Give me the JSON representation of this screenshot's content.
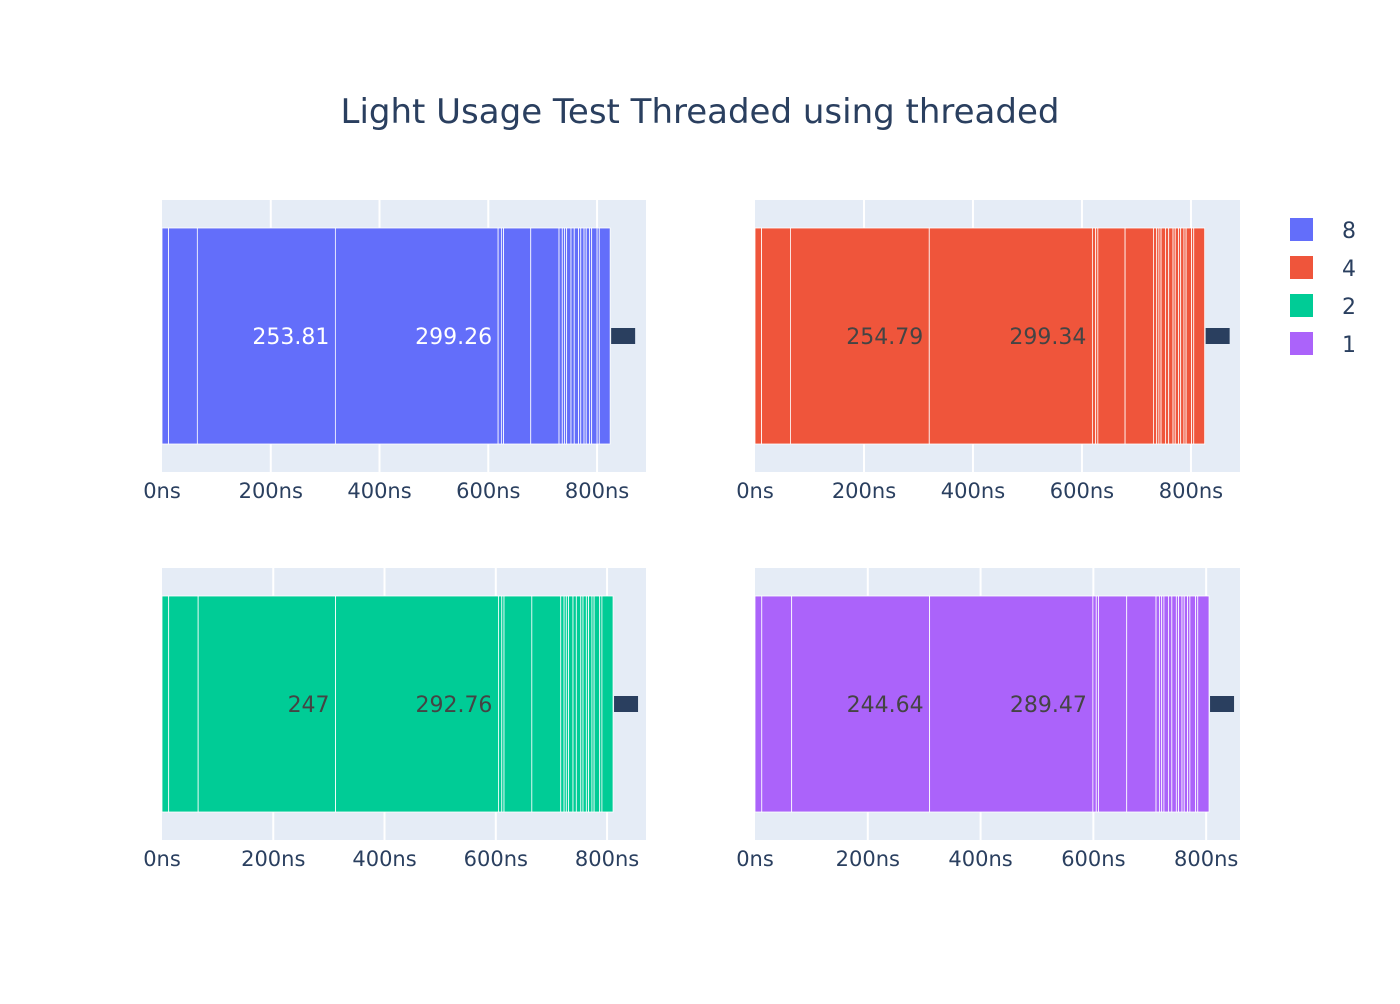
{
  "title": "Light Usage Test Threaded using threaded",
  "legend": {
    "placement": "top-right",
    "items": [
      {
        "label": "8",
        "color": "#636efa"
      },
      {
        "label": "4",
        "color": "#ef553b"
      },
      {
        "label": "2",
        "color": "#00cc96"
      },
      {
        "label": "1",
        "color": "#ab63fa"
      }
    ]
  },
  "chart_data": [
    {
      "type": "bar",
      "orientation": "horizontal-stacked",
      "series_name": "8",
      "color": "#636efa",
      "xlim": [
        0,
        890
      ],
      "x_ticks": [
        "0ns",
        "200ns",
        "400ns",
        "600ns",
        "800ns"
      ],
      "x_tick_values": [
        0,
        200,
        400,
        600,
        800
      ],
      "segments": [
        12,
        53,
        253.81,
        299.26,
        6,
        4,
        50,
        52,
        6,
        4,
        4,
        8,
        6,
        8,
        4,
        6,
        4,
        6,
        4,
        10,
        4,
        20
      ],
      "data_labels": [
        "253.81",
        "299.26"
      ],
      "grid": true
    },
    {
      "type": "bar",
      "orientation": "horizontal-stacked",
      "series_name": "4",
      "color": "#ef553b",
      "xlim": [
        0,
        890
      ],
      "x_ticks": [
        "0ns",
        "200ns",
        "400ns",
        "600ns",
        "800ns"
      ],
      "x_tick_values": [
        0,
        200,
        400,
        600,
        800
      ],
      "segments": [
        12,
        53,
        254.79,
        299.34,
        6,
        4,
        50,
        52,
        6,
        4,
        4,
        8,
        6,
        8,
        4,
        6,
        4,
        6,
        4,
        10,
        4,
        20
      ],
      "data_labels": [
        "254.79",
        "299.34"
      ],
      "grid": true
    },
    {
      "type": "bar",
      "orientation": "horizontal-stacked",
      "series_name": "2",
      "color": "#00cc96",
      "xlim": [
        0,
        870
      ],
      "x_ticks": [
        "0ns",
        "200ns",
        "400ns",
        "600ns",
        "800ns"
      ],
      "x_tick_values": [
        0,
        200,
        400,
        600,
        800
      ],
      "segments": [
        12,
        53,
        247,
        292.76,
        6,
        4,
        50,
        52,
        6,
        4,
        4,
        8,
        6,
        8,
        4,
        6,
        4,
        6,
        4,
        10,
        4,
        20
      ],
      "data_labels": [
        "247",
        "292.76"
      ],
      "grid": true
    },
    {
      "type": "bar",
      "orientation": "horizontal-stacked",
      "series_name": "1",
      "color": "#ab63fa",
      "xlim": [
        0,
        860
      ],
      "x_ticks": [
        "0ns",
        "200ns",
        "400ns",
        "600ns",
        "800ns"
      ],
      "x_tick_values": [
        0,
        200,
        400,
        600,
        800
      ],
      "segments": [
        12,
        53,
        244.64,
        289.47,
        6,
        4,
        50,
        52,
        6,
        4,
        4,
        8,
        6,
        8,
        4,
        6,
        4,
        6,
        4,
        10,
        4,
        20
      ],
      "data_labels": [
        "244.64",
        "289.47"
      ],
      "grid": true
    }
  ]
}
